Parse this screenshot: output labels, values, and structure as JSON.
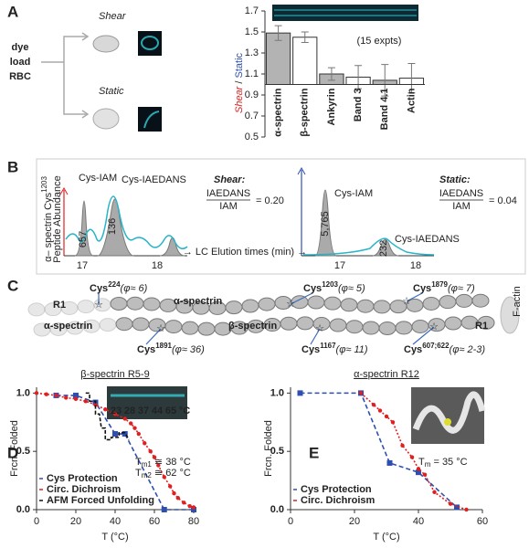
{
  "panels": {
    "A": {
      "label": "A",
      "shear": "Shear",
      "static": "Static",
      "source": [
        "dye",
        "load",
        "RBC"
      ]
    },
    "B": {
      "label": "B",
      "ylabel": {
        "main": "α– spectrin Cys",
        "sup": "1203",
        "line2": "Peptide Abundance"
      },
      "shear": {
        "cys_iam": "Cys-IAM",
        "cys_iaedans": "Cys-IAEDANS",
        "title": "Shear:",
        "num": "IAEDANS",
        "den": "IAM",
        "ratio": "= 0.20",
        "peaks": [
          "657",
          "136"
        ],
        "ticks": [
          "17",
          "18"
        ]
      },
      "xlabel": "→ LC Elution times (min) →",
      "static": {
        "cys_iam": "Cys-IAM",
        "cys_iaedans": "Cys-IAEDANS",
        "title": "Static:",
        "num": "IAEDANS",
        "den": "IAM",
        "ratio": "= 0.04",
        "peaks": [
          "5,765",
          "232"
        ],
        "ticks": [
          "17",
          "18"
        ]
      }
    },
    "C": {
      "label": "C",
      "r1": "R1",
      "alpha": "α-spectrin",
      "alpha_faded": "α-spectrin",
      "beta": "β-spectrin",
      "r1_beta": "R1",
      "factin": "F-actin",
      "sites": [
        {
          "name": "Cys",
          "sup": "224",
          "phi": "(φ≈ 6)"
        },
        {
          "name": "Cys",
          "sup": "1203",
          "phi": "(φ≈ 5)"
        },
        {
          "name": "Cys",
          "sup": "1879",
          "phi": "(φ≈ 7)"
        },
        {
          "name": "Cys",
          "sup": "1891",
          "phi": "(φ≈ 36)"
        },
        {
          "name": "Cys",
          "sup": "1167",
          "phi": "(φ≈ 11)"
        },
        {
          "name": "Cys",
          "sup": "607;622",
          "phi": "(φ≈ 2-3)"
        }
      ]
    },
    "D": {
      "label": "D"
    },
    "E": {
      "label": "E"
    }
  },
  "chart_data": [
    {
      "type": "bar",
      "ylabel": {
        "shear": "Shear",
        "sep": " / ",
        "static": "Static"
      },
      "annotation": "(15 expts)",
      "categories": [
        "α-spectrin",
        "β-spectrin",
        "Ankyrin",
        "Band 3",
        "Band 4.1",
        "Actin"
      ],
      "values": [
        1.49,
        1.45,
        1.1,
        1.07,
        1.04,
        1.06
      ],
      "errors": [
        0.07,
        0.05,
        0.06,
        0.11,
        0.15,
        0.14
      ],
      "colors": [
        "#b3b3b3",
        "#ffffff",
        "#b3b3b3",
        "#ffffff",
        "#b3b3b3",
        "#ffffff"
      ],
      "baseline": 1.0,
      "ylim": [
        0.5,
        1.7
      ],
      "yticks": [
        0.5,
        0.7,
        0.9,
        1.1,
        1.3,
        1.5,
        1.7
      ]
    },
    {
      "type": "line",
      "title": "β-spectrin R5-9",
      "title_color": "#2a8a2a",
      "xlabel": "T (°C)",
      "ylabel": "Frcn. Folded",
      "inset_labels": [
        "23",
        "28",
        "37",
        "44",
        "65",
        "°C"
      ],
      "annotations": [
        {
          "main": "T",
          "sub": "m1",
          "rest": " ≅ 38 °C"
        },
        {
          "main": "T",
          "sub": "m2",
          "rest": " ≅ 62 °C"
        }
      ],
      "annotation_color": "#e02020",
      "xlim": [
        0,
        80
      ],
      "xticks": [
        0,
        20,
        40,
        60,
        80
      ],
      "ylim": [
        0,
        1.05
      ],
      "yticks": [
        {
          "value": 0,
          "label": "0.0"
        },
        {
          "value": 0.5,
          "label": "0.5"
        },
        {
          "value": 1,
          "label": "1.0"
        }
      ],
      "series": [
        {
          "name": "Cys Protection",
          "color": "#2e4fb0",
          "dash": "5,3",
          "marker": "square",
          "x": [
            10,
            20,
            30,
            40,
            45,
            65,
            80
          ],
          "values": [
            0.98,
            0.98,
            0.92,
            0.65,
            0.65,
            0.0,
            0.0
          ]
        },
        {
          "name": "Circ. Dichroism",
          "color": "#e02020",
          "dash": "2,2",
          "marker": "circle",
          "x": [
            0,
            5,
            10,
            15,
            20,
            25,
            30,
            35,
            40,
            45,
            48,
            50,
            52,
            55,
            58,
            60,
            62,
            65,
            68,
            70,
            72,
            75,
            78,
            80
          ],
          "values": [
            1.0,
            0.99,
            0.98,
            0.96,
            0.95,
            0.93,
            0.9,
            0.86,
            0.82,
            0.78,
            0.74,
            0.7,
            0.65,
            0.57,
            0.5,
            0.45,
            0.38,
            0.28,
            0.2,
            0.14,
            0.1,
            0.06,
            0.03,
            0.02
          ]
        },
        {
          "name": "AFM Forced Unfolding",
          "color": "#111111",
          "dash": "4,2",
          "marker": "none",
          "x": [
            25,
            27,
            27,
            30,
            30,
            32,
            33,
            35,
            35,
            38,
            38,
            42,
            42,
            45,
            47
          ],
          "values": [
            1.0,
            1.0,
            0.93,
            0.93,
            0.82,
            0.82,
            0.7,
            0.7,
            0.6,
            0.6,
            0.62,
            0.62,
            0.66,
            0.66,
            0.6
          ]
        }
      ]
    },
    {
      "type": "line",
      "title": "α-spectrin R12",
      "title_color": "#2a8a2a",
      "xlabel": "T (°C)",
      "ylabel": "Frcn. Folded",
      "annotations": [
        {
          "main": "T",
          "sub": "m",
          "rest": " = 35 °C"
        }
      ],
      "annotation_color": "#e02020",
      "xlim": [
        0,
        60
      ],
      "xticks": [
        0,
        20,
        40,
        60
      ],
      "ylim": [
        0,
        1.05
      ],
      "yticks": [
        {
          "value": 0,
          "label": "0.0"
        },
        {
          "value": 0.5,
          "label": "0.5"
        },
        {
          "value": 1,
          "label": "1.0"
        }
      ],
      "series": [
        {
          "name": "Cys Protection",
          "color": "#2e4fb0",
          "dash": "5,3",
          "marker": "square",
          "x": [
            3,
            22,
            31,
            40,
            52
          ],
          "values": [
            1.0,
            1.0,
            0.4,
            0.32,
            0.02
          ]
        },
        {
          "name": "Circ. Dichroism",
          "color": "#e02020",
          "dash": "2,2",
          "marker": "circle",
          "x": [
            22,
            26,
            28,
            30,
            32,
            35,
            38,
            40,
            42,
            45,
            50,
            55
          ],
          "values": [
            1.0,
            0.9,
            0.85,
            0.8,
            0.75,
            0.55,
            0.45,
            0.35,
            0.3,
            0.15,
            0.05,
            0.0
          ]
        }
      ]
    }
  ]
}
